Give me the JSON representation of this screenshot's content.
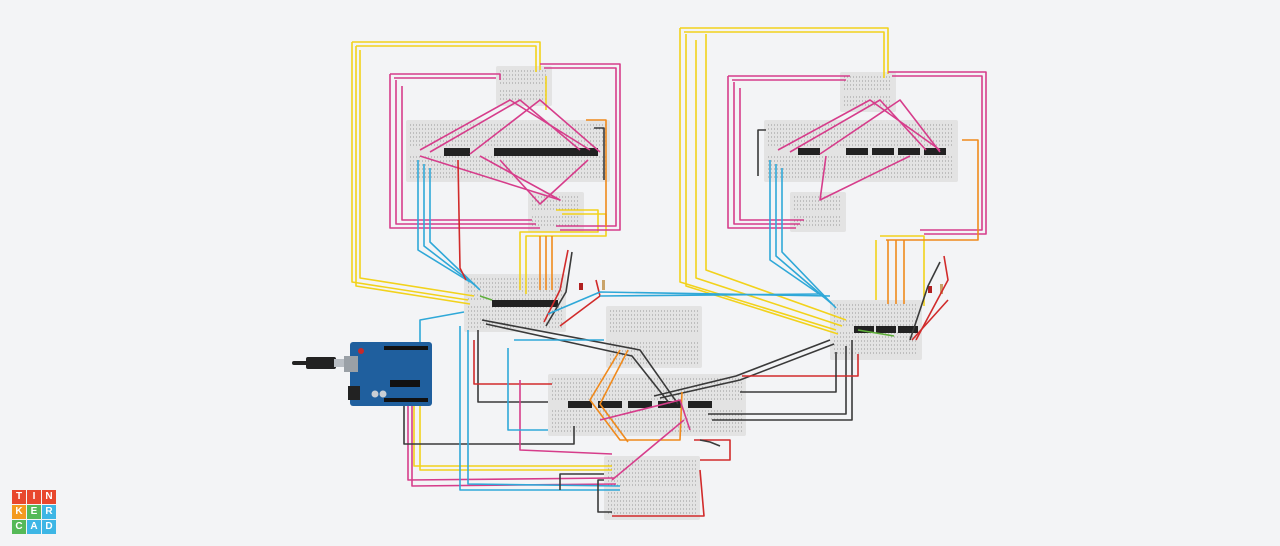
{
  "app": {
    "logo_letters": [
      "T",
      "I",
      "N",
      "K",
      "E",
      "R",
      "C",
      "A",
      "D"
    ],
    "logo_colors": [
      "#e8472d",
      "#e8472d",
      "#e8472d",
      "#f49a1e",
      "#55b957",
      "#3db6e5",
      "#55b957",
      "#3db6e5",
      "#3db6e5"
    ]
  },
  "colors": {
    "canvas_bg": "#f3f4f6",
    "breadboard": "#e3e3e3",
    "chip": "#222222",
    "arduino_board": "#1f5f9e",
    "wire_yellow": "#f2d21b",
    "wire_pink": "#d63d8b",
    "wire_blue": "#2fa8d8",
    "wire_orange": "#f08a1c",
    "wire_dark": "#3a3a3a",
    "wire_red": "#d12b2b",
    "wire_green": "#5fae3b"
  },
  "breadboards": [
    {
      "id": "left-top-small"
    },
    {
      "id": "left-main"
    },
    {
      "id": "left-mid-small"
    },
    {
      "id": "left-lower"
    },
    {
      "id": "center-top"
    },
    {
      "id": "center-main"
    },
    {
      "id": "bottom"
    },
    {
      "id": "right-top-small"
    },
    {
      "id": "right-main"
    },
    {
      "id": "right-mid-small"
    },
    {
      "id": "right-lower"
    }
  ],
  "components": {
    "arduino": "arduino-uno",
    "usb_cable": "usb-cable"
  }
}
